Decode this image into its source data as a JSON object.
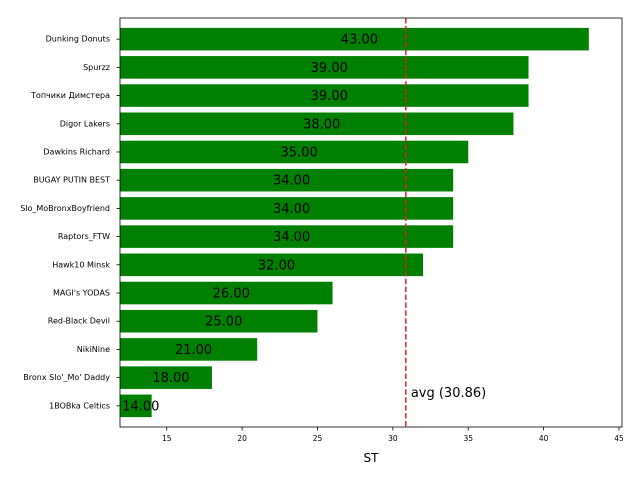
{
  "chart_data": {
    "type": "bar",
    "orientation": "horizontal",
    "categories": [
      "Dunking Donuts",
      "Spurzz",
      "Топчики Димстера",
      "Digor Lakers",
      "Dawkins Richard",
      "BUGAY PUTIN BEST",
      "Slo_MoBronxBoyfriend",
      "Raptors_FTW",
      "Hawk10 Minsk",
      "MAGI's YODAS",
      "Red-Black Devil",
      "NikiNine",
      "Bronx Slo'_Mo' Daddy",
      "1BOBka Celtics"
    ],
    "values": [
      43,
      39,
      39,
      38,
      35,
      34,
      34,
      34,
      32,
      26,
      25,
      21,
      18,
      14
    ],
    "value_labels": [
      "43.00",
      "39.00",
      "39.00",
      "38.00",
      "35.00",
      "34.00",
      "34.00",
      "34.00",
      "32.00",
      "26.00",
      "25.00",
      "21.00",
      "18.00",
      "14.00"
    ],
    "bar_color": "#008000",
    "xlabel": "ST",
    "ylabel": "",
    "xlim": [
      11.9,
      45.2
    ],
    "xticks": [
      15,
      20,
      25,
      30,
      35,
      40,
      45
    ],
    "average": {
      "value": 30.86,
      "label": "avg (30.86)",
      "color": "#d62728",
      "style": "dashed"
    },
    "grid": false
  }
}
